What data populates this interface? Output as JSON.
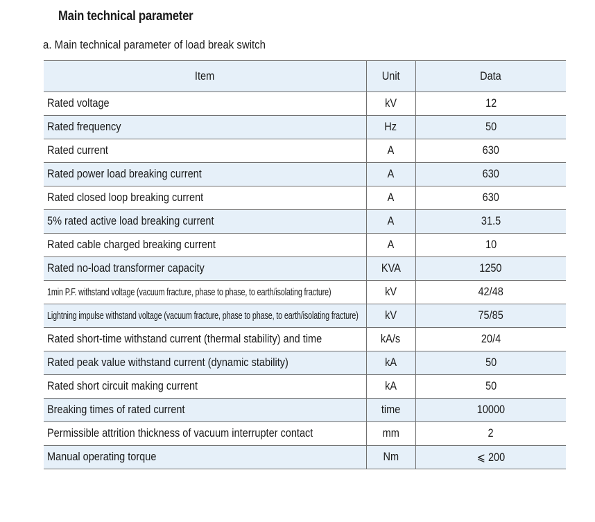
{
  "document": {
    "title": "Main technical parameter",
    "subtitle": "a. Main technical  parameter of load break switch"
  },
  "table": {
    "headers": {
      "item": "Item",
      "unit": "Unit",
      "data": "Data"
    },
    "rows": [
      {
        "item": "Rated voltage",
        "unit": "kV",
        "data": "12"
      },
      {
        "item": "Rated frequency",
        "unit": "Hz",
        "data": "50"
      },
      {
        "item": "Rated current",
        "unit": "A",
        "data": "630"
      },
      {
        "item": "Rated power load breaking current",
        "unit": "A",
        "data": "630"
      },
      {
        "item": "Rated closed loop breaking current",
        "unit": "A",
        "data": "630"
      },
      {
        "item": "5% rated active load breaking current",
        "unit": "A",
        "data": "31.5"
      },
      {
        "item": "Rated cable charged breaking current",
        "unit": "A",
        "data": "10"
      },
      {
        "item": "Rated no-load transformer capacity",
        "unit": "KVA",
        "data": "1250"
      },
      {
        "item": "1min P.F. withstand voltage (vacuum fracture, phase to phase, to earth/isolating fracture)",
        "unit": "kV",
        "data": "42/48"
      },
      {
        "item": "Lightning impulse withstand voltage (vacuum fracture, phase to phase, to earth/isolating fracture)",
        "unit": "kV",
        "data": "75/85"
      },
      {
        "item": "Rated short-time withstand current (thermal stability) and time",
        "unit": "kA/s",
        "data": "20/4"
      },
      {
        "item": "Rated peak value withstand current (dynamic stability)",
        "unit": "kA",
        "data": "50"
      },
      {
        "item": "Rated short circuit making current",
        "unit": "kA",
        "data": "50"
      },
      {
        "item": "Breaking times of rated current",
        "unit": "time",
        "data": "10000"
      },
      {
        "item": "Permissible attrition thickness of vacuum interrupter contact",
        "unit": "mm",
        "data": "2"
      },
      {
        "item": "Manual operating torque",
        "unit": "Nm",
        "data": "⩽ 200"
      }
    ]
  }
}
